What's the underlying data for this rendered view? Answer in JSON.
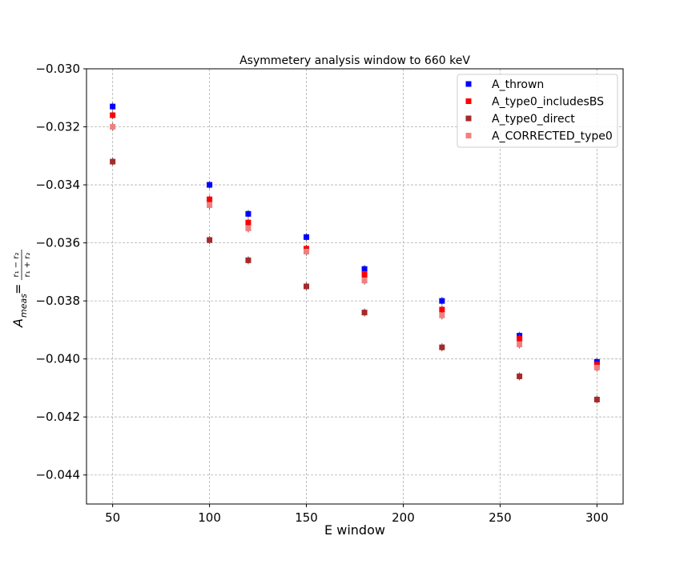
{
  "chart_data": {
    "type": "scatter",
    "title": "Asymmetery analysis window to 660 keV",
    "xlabel": "E window",
    "ylabel": {
      "main": "A",
      "sub": "meas",
      "equals": "=",
      "numerator": "r₁ − r₂",
      "denominator": "r₁ + r₂"
    },
    "xlim": [
      36.5,
      313.5
    ],
    "ylim": [
      -0.045,
      -0.03
    ],
    "xticks": [
      50,
      100,
      150,
      200,
      250,
      300
    ],
    "yticks": [
      -0.044,
      -0.042,
      -0.04,
      -0.038,
      -0.036,
      -0.034,
      -0.032,
      -0.03
    ],
    "ytick_labels": [
      "−0.044",
      "−0.042",
      "−0.040",
      "−0.038",
      "−0.036",
      "−0.034",
      "−0.032",
      "−0.030"
    ],
    "grid": true,
    "legend_position": "top-right",
    "x": [
      50,
      100,
      120,
      150,
      180,
      220,
      260,
      300
    ],
    "series": [
      {
        "name": "A_thrown",
        "color": "#0000ff",
        "values": [
          -0.0313,
          -0.034,
          -0.035,
          -0.0358,
          -0.0369,
          -0.038,
          -0.0392,
          -0.0401
        ]
      },
      {
        "name": "A_type0_includesBS",
        "color": "#ff0000",
        "values": [
          -0.0316,
          -0.0345,
          -0.0353,
          -0.0362,
          -0.0371,
          -0.0383,
          -0.0393,
          -0.0402
        ]
      },
      {
        "name": "A_type0_direct",
        "color": "#a52a2a",
        "values": [
          -0.0332,
          -0.0359,
          -0.0366,
          -0.0375,
          -0.0384,
          -0.0396,
          -0.0406,
          -0.0414
        ]
      },
      {
        "name": "A_CORRECTED_type0",
        "color": "#f08080",
        "values": [
          -0.032,
          -0.0347,
          -0.0355,
          -0.0363,
          -0.0373,
          -0.0385,
          -0.0395,
          -0.0403
        ]
      }
    ]
  }
}
